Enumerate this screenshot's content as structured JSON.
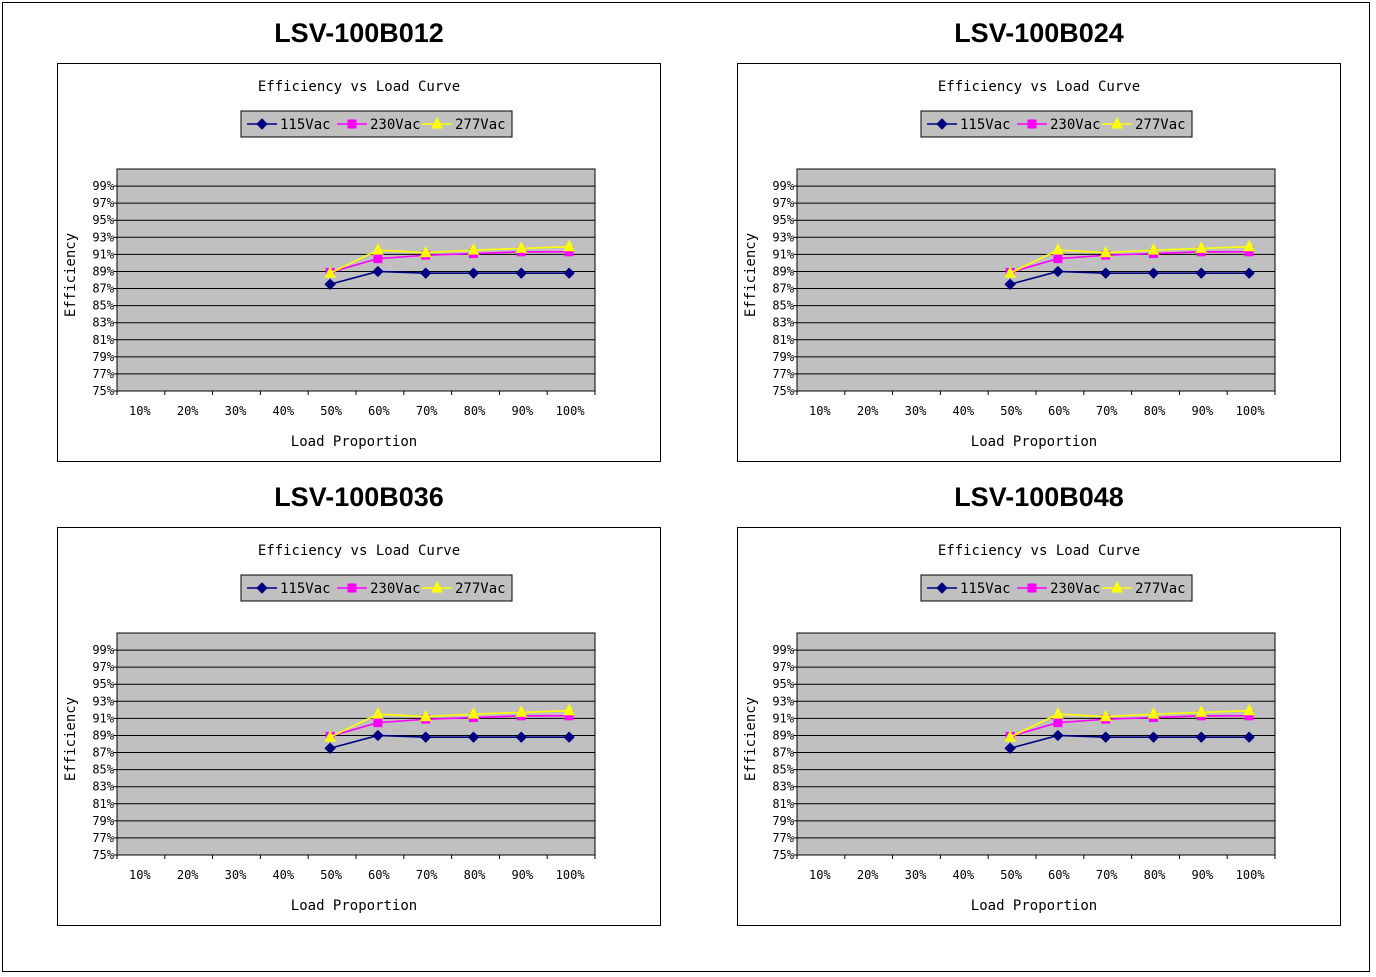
{
  "colors": {
    "plot_bg": "#c0c0c0",
    "grid": "#000000",
    "s115": "#000080",
    "s230": "#ff00ff",
    "s277": "#ffff00"
  },
  "chart_data": [
    {
      "model": "LSV-100B012",
      "type": "line",
      "title": "Efficiency vs Load Curve",
      "xlabel": "Load Proportion",
      "ylabel": "Efficiency",
      "categories": [
        "10%",
        "20%",
        "30%",
        "40%",
        "50%",
        "60%",
        "70%",
        "80%",
        "90%",
        "100%"
      ],
      "yticks": [
        "75%",
        "77%",
        "79%",
        "81%",
        "83%",
        "85%",
        "87%",
        "89%",
        "91%",
        "93%",
        "95%",
        "97%",
        "99%"
      ],
      "ylim": [
        75,
        99
      ],
      "series": [
        {
          "name": "115Vac",
          "marker": "diamond",
          "color": "#000080",
          "values": [
            null,
            null,
            null,
            null,
            87.5,
            89.0,
            88.8,
            88.8,
            88.8,
            88.8
          ]
        },
        {
          "name": "230Vac",
          "marker": "square",
          "color": "#ff00ff",
          "values": [
            null,
            null,
            null,
            null,
            88.9,
            90.5,
            90.9,
            91.1,
            91.3,
            91.3
          ]
        },
        {
          "name": "277Vac",
          "marker": "triangle",
          "color": "#ffff00",
          "values": [
            null,
            null,
            null,
            null,
            88.8,
            91.5,
            91.2,
            91.5,
            91.7,
            91.9
          ]
        }
      ],
      "legend": "top"
    },
    {
      "model": "LSV-100B024",
      "type": "line",
      "title": "Efficiency vs Load Curve",
      "xlabel": "Load Proportion",
      "ylabel": "Efficiency",
      "categories": [
        "10%",
        "20%",
        "30%",
        "40%",
        "50%",
        "60%",
        "70%",
        "80%",
        "90%",
        "100%"
      ],
      "yticks": [
        "75%",
        "77%",
        "79%",
        "81%",
        "83%",
        "85%",
        "87%",
        "89%",
        "91%",
        "93%",
        "95%",
        "97%",
        "99%"
      ],
      "ylim": [
        75,
        99
      ],
      "series": [
        {
          "name": "115Vac",
          "marker": "diamond",
          "color": "#000080",
          "values": [
            null,
            null,
            null,
            null,
            87.5,
            89.0,
            88.8,
            88.8,
            88.8,
            88.8
          ]
        },
        {
          "name": "230Vac",
          "marker": "square",
          "color": "#ff00ff",
          "values": [
            null,
            null,
            null,
            null,
            88.9,
            90.5,
            90.9,
            91.1,
            91.3,
            91.3
          ]
        },
        {
          "name": "277Vac",
          "marker": "triangle",
          "color": "#ffff00",
          "values": [
            null,
            null,
            null,
            null,
            88.8,
            91.5,
            91.2,
            91.5,
            91.7,
            91.9
          ]
        }
      ],
      "legend": "top"
    },
    {
      "model": "LSV-100B036",
      "type": "line",
      "title": "Efficiency vs Load Curve",
      "xlabel": "Load Proportion",
      "ylabel": "Efficiency",
      "categories": [
        "10%",
        "20%",
        "30%",
        "40%",
        "50%",
        "60%",
        "70%",
        "80%",
        "90%",
        "100%"
      ],
      "yticks": [
        "75%",
        "77%",
        "79%",
        "81%",
        "83%",
        "85%",
        "87%",
        "89%",
        "91%",
        "93%",
        "95%",
        "97%",
        "99%"
      ],
      "ylim": [
        75,
        99
      ],
      "series": [
        {
          "name": "115Vac",
          "marker": "diamond",
          "color": "#000080",
          "values": [
            null,
            null,
            null,
            null,
            87.5,
            89.0,
            88.8,
            88.8,
            88.8,
            88.8
          ]
        },
        {
          "name": "230Vac",
          "marker": "square",
          "color": "#ff00ff",
          "values": [
            null,
            null,
            null,
            null,
            88.9,
            90.5,
            90.9,
            91.1,
            91.3,
            91.3
          ]
        },
        {
          "name": "277Vac",
          "marker": "triangle",
          "color": "#ffff00",
          "values": [
            null,
            null,
            null,
            null,
            88.8,
            91.5,
            91.2,
            91.5,
            91.7,
            91.9
          ]
        }
      ],
      "legend": "top"
    },
    {
      "model": "LSV-100B048",
      "type": "line",
      "title": "Efficiency vs Load Curve",
      "xlabel": "Load Proportion",
      "ylabel": "Efficiency",
      "categories": [
        "10%",
        "20%",
        "30%",
        "40%",
        "50%",
        "60%",
        "70%",
        "80%",
        "90%",
        "100%"
      ],
      "yticks": [
        "75%",
        "77%",
        "79%",
        "81%",
        "83%",
        "85%",
        "87%",
        "89%",
        "91%",
        "93%",
        "95%",
        "97%",
        "99%"
      ],
      "ylim": [
        75,
        99
      ],
      "series": [
        {
          "name": "115Vac",
          "marker": "diamond",
          "color": "#000080",
          "values": [
            null,
            null,
            null,
            null,
            87.5,
            89.0,
            88.8,
            88.8,
            88.8,
            88.8
          ]
        },
        {
          "name": "230Vac",
          "marker": "square",
          "color": "#ff00ff",
          "values": [
            null,
            null,
            null,
            null,
            88.9,
            90.5,
            90.9,
            91.1,
            91.3,
            91.3
          ]
        },
        {
          "name": "277Vac",
          "marker": "triangle",
          "color": "#ffff00",
          "values": [
            null,
            null,
            null,
            null,
            88.8,
            91.5,
            91.2,
            91.5,
            91.7,
            91.9
          ]
        }
      ],
      "legend": "top"
    }
  ]
}
